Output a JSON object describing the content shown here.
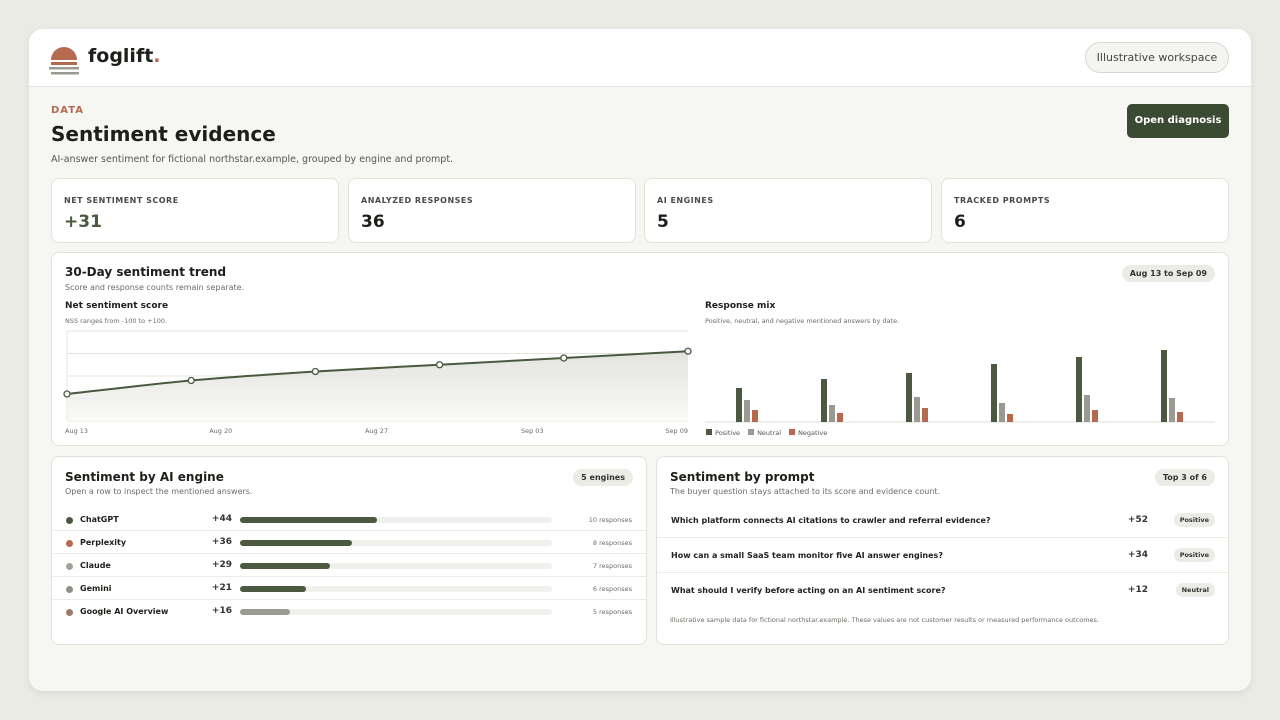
{
  "header": {
    "brand": "foglift",
    "brand_dot": ".",
    "workspace": "Illustrative workspace"
  },
  "page": {
    "eyebrow": "DATA",
    "title": "Sentiment evidence",
    "subtitle": "AI-answer sentiment for fictional northstar.example, grouped by engine and prompt.",
    "action": "Open diagnosis"
  },
  "stats": [
    {
      "label": "NET SENTIMENT SCORE",
      "value": "+31"
    },
    {
      "label": "ANALYZED RESPONSES",
      "value": "36"
    },
    {
      "label": "AI ENGINES",
      "value": "5"
    },
    {
      "label": "TRACKED PROMPTS",
      "value": "6"
    }
  ],
  "trend": {
    "title": "30-Day sentiment trend",
    "subtitle": "Score and response counts remain separate.",
    "range": "Aug 13 to Sep 09",
    "nss": {
      "type": "line",
      "title": "Net sentiment score",
      "subtitle": "NSS ranges from -100 to +100.",
      "xlabels": [
        "Aug 13",
        "Aug 20",
        "Aug 27",
        "Sep 03",
        "Sep 09"
      ],
      "values": [
        12,
        18,
        22,
        25,
        28,
        31
      ],
      "color": "#4a5940",
      "ylim": [
        0,
        40
      ],
      "yticks": [
        0,
        10,
        20,
        30,
        40
      ],
      "grid": true
    },
    "mix": {
      "type": "bar",
      "title": "Response mix",
      "subtitle": "Positive, neutral, and negative mentioned answers by date.",
      "ylim": [
        0,
        80
      ],
      "series": [
        {
          "name": "Positive",
          "color": "#4a5940",
          "values": [
            34,
            43,
            49,
            58,
            65,
            72
          ]
        },
        {
          "name": "Neutral",
          "color": "#9a9a92",
          "values": [
            22,
            17,
            25,
            19,
            27,
            24
          ]
        },
        {
          "name": "Negative",
          "color": "#b56a50",
          "values": [
            12,
            9,
            14,
            8,
            12,
            10
          ]
        }
      ]
    }
  },
  "engines": {
    "title": "Sentiment by AI engine",
    "subtitle": "Open a row to inspect the mentioned answers.",
    "badge": "5 engines",
    "xlim": [
      0,
      100
    ],
    "rows": [
      {
        "name": "ChatGPT",
        "score": 44,
        "score_label": "+44",
        "responses": "10 responses",
        "color": "#4a5940"
      },
      {
        "name": "Perplexity",
        "score": 36,
        "score_label": "+36",
        "responses": "8 responses",
        "color": "#b56a50"
      },
      {
        "name": "Claude",
        "score": 29,
        "score_label": "+29",
        "responses": "7 responses",
        "color": "#a3a39b"
      },
      {
        "name": "Gemini",
        "score": 21,
        "score_label": "+21",
        "responses": "6 responses",
        "color": "#8f8f88"
      },
      {
        "name": "Google AI Overview",
        "score": 16,
        "score_label": "+16",
        "responses": "5 responses",
        "color": "#9a7a6a"
      }
    ],
    "bar_colors": [
      "#4a5940",
      "#4a5940",
      "#4a5940",
      "#4a5940",
      "#9a9a90"
    ]
  },
  "prompts": {
    "title": "Sentiment by prompt",
    "subtitle": "The buyer question stays attached to its score and evidence count.",
    "badge": "Top 3 of 6",
    "rows": [
      {
        "question": "Which platform connects AI citations to crawler and referral evidence?",
        "score": "+52",
        "sentiment": "Positive"
      },
      {
        "question": "How can a small SaaS team monitor five AI answer engines?",
        "score": "+34",
        "sentiment": "Positive"
      },
      {
        "question": "What should I verify before acting on an AI sentiment score?",
        "score": "+12",
        "sentiment": "Neutral"
      }
    ],
    "footnote": "Illustrative sample data for fictional northstar.example. These values are not customer results or measured performance outcomes."
  }
}
